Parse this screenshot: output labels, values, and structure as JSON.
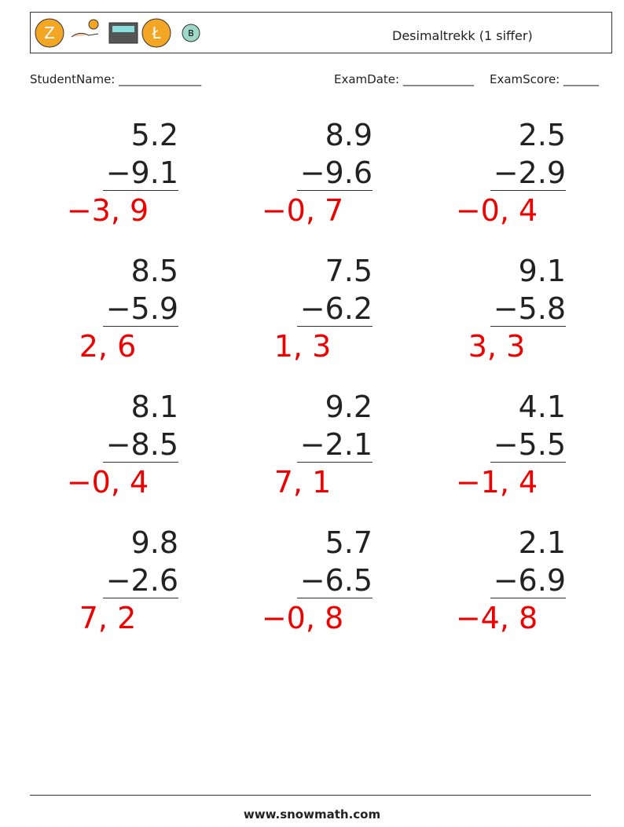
{
  "header": {
    "title": "Desimaltrekk (1 siffer)"
  },
  "fields": {
    "student_name": "StudentName: ______________",
    "exam_date": "ExamDate: ____________",
    "exam_score": "ExamScore: ______"
  },
  "problems": [
    {
      "top": "5.2",
      "bottom": "−9.1",
      "answer": "−3, 9"
    },
    {
      "top": "8.9",
      "bottom": "−9.6",
      "answer": "−0, 7"
    },
    {
      "top": "2.5",
      "bottom": "−2.9",
      "answer": "−0, 4"
    },
    {
      "top": "8.5",
      "bottom": "−5.9",
      "answer": "2, 6"
    },
    {
      "top": "7.5",
      "bottom": "−6.2",
      "answer": "1, 3"
    },
    {
      "top": "9.1",
      "bottom": "−5.8",
      "answer": "3, 3"
    },
    {
      "top": "8.1",
      "bottom": "−8.5",
      "answer": "−0, 4"
    },
    {
      "top": "9.2",
      "bottom": "−2.1",
      "answer": "7, 1"
    },
    {
      "top": "4.1",
      "bottom": "−5.5",
      "answer": "−1, 4"
    },
    {
      "top": "9.8",
      "bottom": "−2.6",
      "answer": "7, 2"
    },
    {
      "top": "5.7",
      "bottom": "−6.5",
      "answer": "−0, 8"
    },
    {
      "top": "2.1",
      "bottom": "−6.9",
      "answer": "−4, 8"
    }
  ],
  "footer": {
    "site": "www.snowmath.com"
  }
}
